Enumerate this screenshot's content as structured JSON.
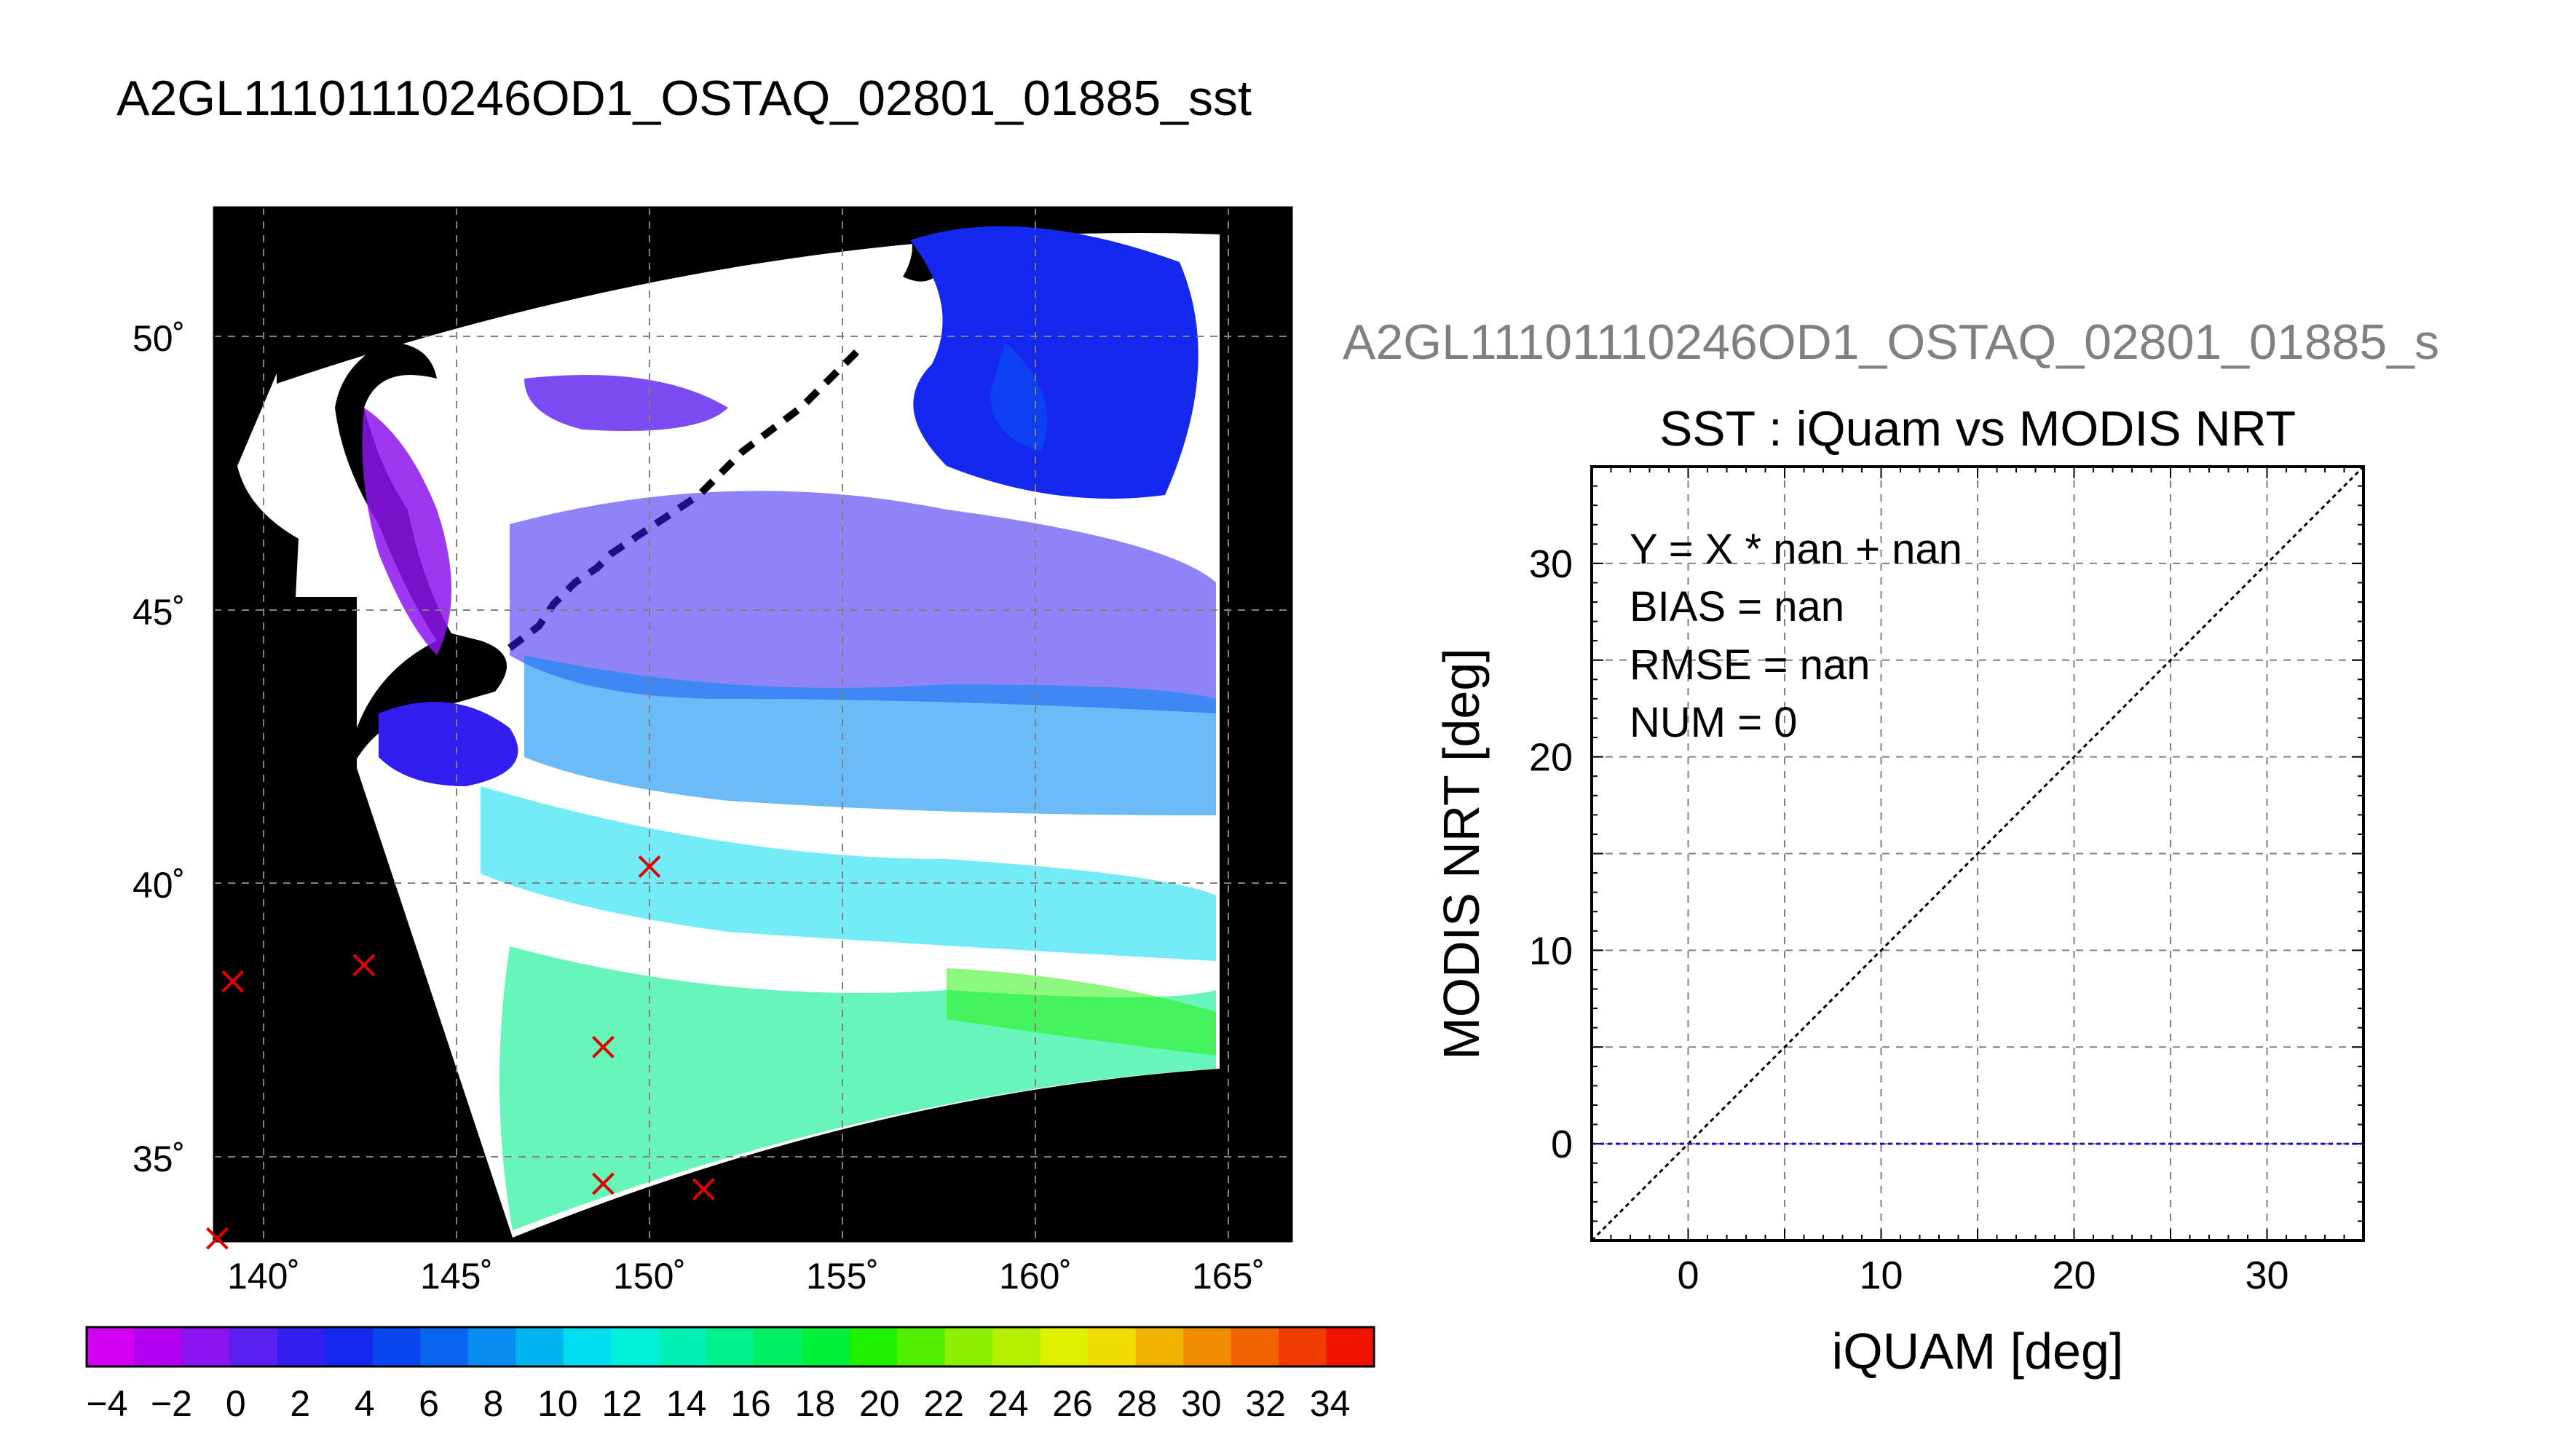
{
  "page_title": "A2GL11101110246OD1_OSTAQ_02801_01885_sst",
  "map": {
    "lat_labels": [
      "50˚",
      "45˚",
      "40˚",
      "35˚"
    ],
    "lon_labels": [
      "140˚",
      "145˚",
      "150˚",
      "155˚",
      "160˚",
      "165˚"
    ],
    "station_markers_lonlat": [
      [
        139.2,
        38.2
      ],
      [
        142.6,
        38.5
      ],
      [
        150.0,
        40.3
      ],
      [
        148.8,
        37.0
      ],
      [
        148.8,
        34.5
      ],
      [
        151.4,
        34.4
      ],
      [
        138.8,
        33.5
      ]
    ],
    "marker_color": "#e00000"
  },
  "colorbar": {
    "tick_labels": [
      "−4",
      "−2",
      "0",
      "2",
      "4",
      "6",
      "8",
      "10",
      "12",
      "14",
      "16",
      "18",
      "20",
      "22",
      "24",
      "26",
      "28",
      "30",
      "32",
      "34"
    ],
    "colors": [
      "#d200f0",
      "#b400f0",
      "#8c14f0",
      "#5a1ef0",
      "#321ef0",
      "#1428f0",
      "#0a46f0",
      "#0a64f0",
      "#0a8cf0",
      "#00b4f0",
      "#00dcf0",
      "#00f0dc",
      "#00f0b4",
      "#00f08c",
      "#00f064",
      "#00f03c",
      "#1ef000",
      "#50f000",
      "#8cf000",
      "#b4f000",
      "#dcf000",
      "#f0dc00",
      "#f0b400",
      "#f08c00",
      "#f06400",
      "#f03c00",
      "#f01400"
    ]
  },
  "scatter": {
    "subtitle": "A2GL11101110246OD1_OSTAQ_02801_01885_s",
    "title": "SST : iQuam vs MODIS NRT",
    "stats": [
      "Y = X * nan + nan",
      "BIAS = nan",
      "RMSE = nan",
      "NUM = 0"
    ]
  },
  "chart_data": {
    "type": "scatter",
    "title": "SST : iQuam vs MODIS NRT",
    "xlabel": "iQUAM [deg]",
    "ylabel": "MODIS NRT [deg]",
    "xlim": [
      -5,
      35
    ],
    "ylim": [
      -5,
      35
    ],
    "xticks": [
      0,
      10,
      20,
      30
    ],
    "yticks": [
      0,
      10,
      20,
      30
    ],
    "x_tick_labels": [
      "0",
      "10",
      "20",
      "30"
    ],
    "y_tick_labels": [
      "0",
      "10",
      "20",
      "30"
    ],
    "grid": true,
    "grid_step": 5,
    "reference_lines": [
      {
        "kind": "identity",
        "x": [
          -5,
          35
        ],
        "y": [
          -5,
          35
        ],
        "color": "#000000"
      },
      {
        "kind": "zero",
        "x": [
          -5,
          35
        ],
        "y": [
          0,
          0
        ],
        "color": "#1010c8"
      }
    ],
    "series": [
      {
        "x": [],
        "y": []
      }
    ]
  }
}
